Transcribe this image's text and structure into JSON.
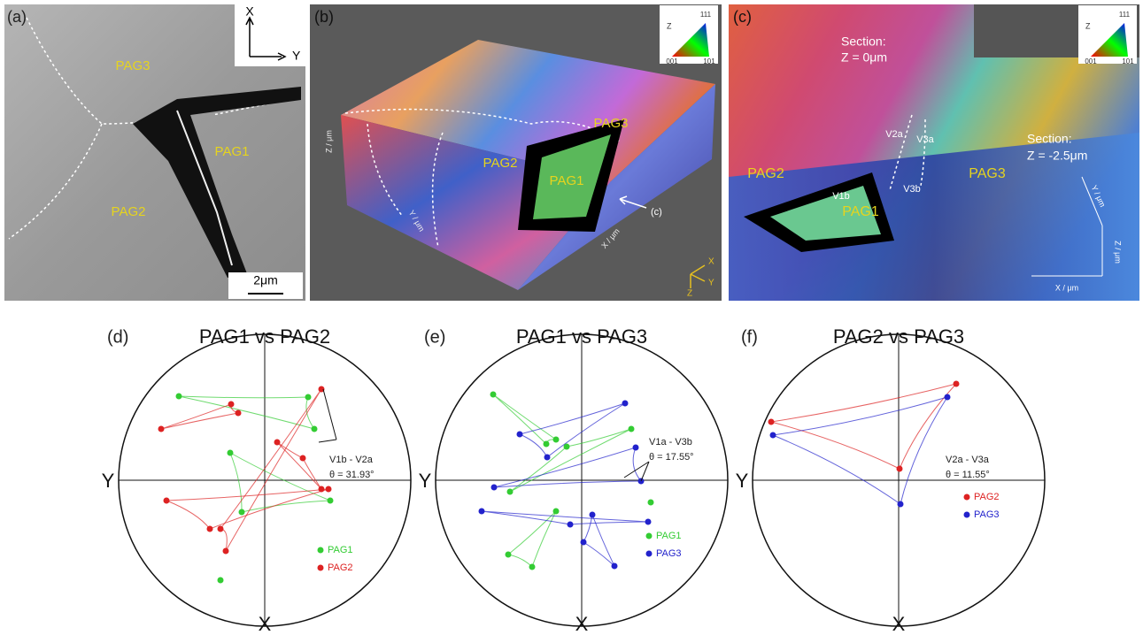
{
  "panels": [
    {
      "label": "(a)",
      "axis_x": "X",
      "axis_y": "Y",
      "regions": [
        "PAG3",
        "PAG1",
        "PAG2"
      ],
      "scale_bar": "2μm"
    },
    {
      "label": "(b)",
      "regions": [
        "PAG3",
        "PAG2",
        "PAG1"
      ],
      "arrow_label": "(c)",
      "axis_labels": [
        "Z / μm",
        "Y / μm",
        "X / μm"
      ],
      "triad": [
        "X",
        "Y",
        "Z"
      ],
      "key": [
        "Z",
        "111",
        "001",
        "101"
      ]
    },
    {
      "label": "(c)",
      "sections": [
        [
          "Section:",
          "Z = 0μm"
        ],
        [
          "Section:",
          "Z = -2.5μm"
        ]
      ],
      "variants": [
        "V2a",
        "V3a",
        "V1b",
        "V3b"
      ],
      "regions": [
        "PAG2",
        "PAG1",
        "PAG3"
      ],
      "axis_labels": [
        "X / μm",
        "Y / μm",
        "Z / μm"
      ],
      "key": [
        "Z",
        "111",
        "001",
        "101"
      ]
    }
  ],
  "pole_figures": [
    {
      "label": "(d)",
      "title": "PAG1 vs PAG2",
      "axis_y": "Y",
      "axis_x": "X",
      "annotation": [
        "V1b - V2a",
        "θ = 31.93°"
      ],
      "legend": [
        {
          "name": "PAG1",
          "color": "#33cc33"
        },
        {
          "name": "PAG2",
          "color": "#dd2222"
        }
      ]
    },
    {
      "label": "(e)",
      "title": "PAG1 vs PAG3",
      "axis_y": "Y",
      "axis_x": "X",
      "annotation": [
        "V1a - V3b",
        "θ = 17.55°"
      ],
      "legend": [
        {
          "name": "PAG1",
          "color": "#33cc33"
        },
        {
          "name": "PAG3",
          "color": "#2222cc"
        }
      ]
    },
    {
      "label": "(f)",
      "title": "PAG2 vs PAG3",
      "axis_y": "Y",
      "axis_x": "X",
      "annotation": [
        "V2a - V3a",
        "θ = 11.55°"
      ],
      "legend": [
        {
          "name": "PAG2",
          "color": "#dd2222"
        },
        {
          "name": "PAG3",
          "color": "#2222cc"
        }
      ]
    }
  ]
}
